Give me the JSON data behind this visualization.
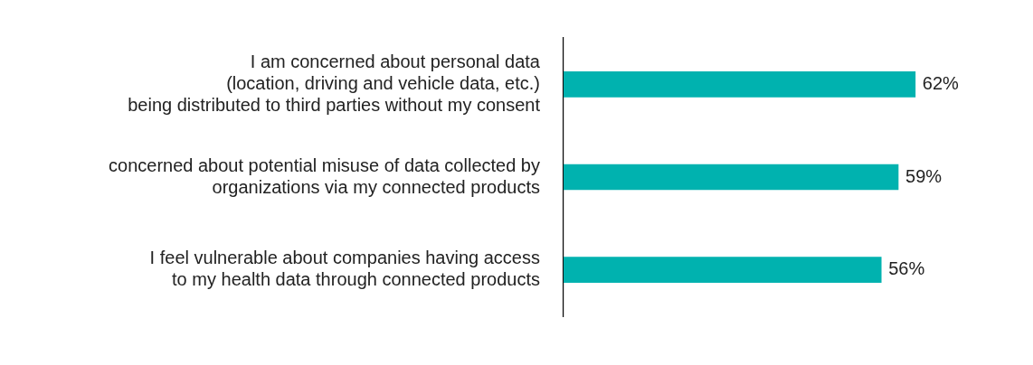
{
  "chart_data": {
    "type": "bar",
    "orientation": "horizontal",
    "categories": [
      "I am concerned about personal data\n(location, driving and vehicle data, etc.)\nbeing distributed to third parties without my consent",
      "concerned about potential misuse of data collected by\norganizations via my connected products",
      "I feel vulnerable about companies having access\nto my health data through connected products"
    ],
    "values": [
      62,
      59,
      56
    ],
    "value_labels": [
      "62%",
      "59%",
      "56%"
    ],
    "color": "#00b2af",
    "tick_labels": "y"
  }
}
